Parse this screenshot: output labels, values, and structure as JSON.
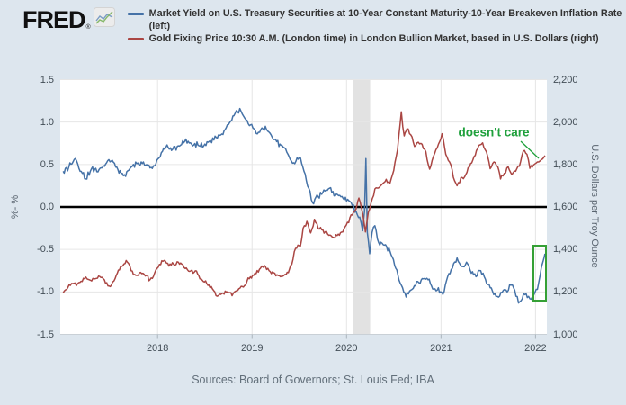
{
  "header": {
    "logo_text": "FRED",
    "logo_reg": "®",
    "legend": [
      {
        "label": "Market Yield on U.S. Treasury Securities at 10-Year Constant Maturity-10-Year Breakeven Inflation Rate (left)",
        "color": "#4572a7"
      },
      {
        "label": "Gold Fixing Price 10:30 A.M. (London time) in London Bullion Market, based in U.S. Dollars (right)",
        "color": "#aa4643"
      }
    ]
  },
  "footer": {
    "sources": "Sources: Board of Governors; St. Louis Fed; IBA"
  },
  "colors": {
    "background": "#dde6ee",
    "plot_background": "#ffffff",
    "gridline": "#e6e6e6",
    "zero_line": "#000000",
    "recession_band": "#e2e2e2",
    "treasury_line": "#4572a7",
    "gold_line": "#aa4643",
    "annotation_green": "#1fa03c"
  },
  "chart_data": {
    "type": "line",
    "x_domain": [
      2016.97,
      2022.12
    ],
    "x_ticks": [
      {
        "v": 2018,
        "label": "2018"
      },
      {
        "v": 2019,
        "label": "2019"
      },
      {
        "v": 2020,
        "label": "2020"
      },
      {
        "v": 2021,
        "label": "2021"
      },
      {
        "v": 2022,
        "label": "2022"
      }
    ],
    "y_left": {
      "label": "%- %",
      "domain": [
        -1.5,
        1.5
      ],
      "ticks": [
        {
          "v": 1.5,
          "label": "1.5"
        },
        {
          "v": 1.0,
          "label": "1.0"
        },
        {
          "v": 0.5,
          "label": "0.5"
        },
        {
          "v": 0.0,
          "label": "0.0"
        },
        {
          "v": -0.5,
          "label": "-0.5"
        },
        {
          "v": -1.0,
          "label": "-1.0"
        },
        {
          "v": -1.5,
          "label": "-1.5"
        }
      ]
    },
    "y_right": {
      "label": "U.S. Dollars per Troy Ounce",
      "domain": [
        1000,
        2200
      ],
      "ticks": [
        {
          "v": 2200,
          "label": "2,200"
        },
        {
          "v": 2000,
          "label": "2,000"
        },
        {
          "v": 1800,
          "label": "1,800"
        },
        {
          "v": 1600,
          "label": "1,600"
        },
        {
          "v": 1400,
          "label": "1,400"
        },
        {
          "v": 1200,
          "label": "1,200"
        },
        {
          "v": 1000,
          "label": "1,000"
        }
      ]
    },
    "zero_line": 0,
    "recession_band": {
      "from": 2020.07,
      "to": 2020.25
    },
    "series": [
      {
        "id": "treasury-real-yield",
        "axis": "left",
        "color": "#4572a7",
        "points": [
          [
            2017.0,
            0.42
          ],
          [
            2017.06,
            0.47
          ],
          [
            2017.13,
            0.57
          ],
          [
            2017.18,
            0.42
          ],
          [
            2017.24,
            0.33
          ],
          [
            2017.3,
            0.45
          ],
          [
            2017.38,
            0.44
          ],
          [
            2017.46,
            0.52
          ],
          [
            2017.52,
            0.55
          ],
          [
            2017.58,
            0.44
          ],
          [
            2017.65,
            0.38
          ],
          [
            2017.72,
            0.47
          ],
          [
            2017.78,
            0.51
          ],
          [
            2017.85,
            0.53
          ],
          [
            2017.92,
            0.46
          ],
          [
            2017.98,
            0.5
          ],
          [
            2018.04,
            0.64
          ],
          [
            2018.1,
            0.73
          ],
          [
            2018.16,
            0.68
          ],
          [
            2018.22,
            0.72
          ],
          [
            2018.3,
            0.8
          ],
          [
            2018.36,
            0.74
          ],
          [
            2018.44,
            0.72
          ],
          [
            2018.5,
            0.74
          ],
          [
            2018.56,
            0.78
          ],
          [
            2018.62,
            0.82
          ],
          [
            2018.68,
            0.86
          ],
          [
            2018.75,
            0.97
          ],
          [
            2018.82,
            1.1
          ],
          [
            2018.87,
            1.16
          ],
          [
            2018.91,
            1.07
          ],
          [
            2018.96,
            0.98
          ],
          [
            2019.02,
            0.92
          ],
          [
            2019.08,
            0.88
          ],
          [
            2019.14,
            0.95
          ],
          [
            2019.2,
            0.85
          ],
          [
            2019.26,
            0.77
          ],
          [
            2019.32,
            0.72
          ],
          [
            2019.38,
            0.62
          ],
          [
            2019.44,
            0.52
          ],
          [
            2019.5,
            0.58
          ],
          [
            2019.55,
            0.42
          ],
          [
            2019.6,
            0.22
          ],
          [
            2019.64,
            0.05
          ],
          [
            2019.7,
            0.12
          ],
          [
            2019.76,
            0.2
          ],
          [
            2019.82,
            0.22
          ],
          [
            2019.88,
            0.13
          ],
          [
            2019.94,
            0.12
          ],
          [
            2020.0,
            0.07
          ],
          [
            2020.06,
            0.02
          ],
          [
            2020.1,
            -0.05
          ],
          [
            2020.14,
            -0.12
          ],
          [
            2020.17,
            -0.28
          ],
          [
            2020.19,
            -0.05
          ],
          [
            2020.205,
            0.57
          ],
          [
            2020.22,
            -0.3
          ],
          [
            2020.245,
            -0.55
          ],
          [
            2020.27,
            -0.3
          ],
          [
            2020.3,
            -0.22
          ],
          [
            2020.34,
            -0.42
          ],
          [
            2020.4,
            -0.45
          ],
          [
            2020.46,
            -0.52
          ],
          [
            2020.52,
            -0.72
          ],
          [
            2020.58,
            -0.92
          ],
          [
            2020.63,
            -1.06
          ],
          [
            2020.68,
            -0.98
          ],
          [
            2020.73,
            -0.93
          ],
          [
            2020.79,
            -0.86
          ],
          [
            2020.85,
            -0.84
          ],
          [
            2020.9,
            -0.93
          ],
          [
            2020.96,
            -0.98
          ],
          [
            2021.02,
            -1.03
          ],
          [
            2021.07,
            -0.82
          ],
          [
            2021.12,
            -0.72
          ],
          [
            2021.17,
            -0.6
          ],
          [
            2021.22,
            -0.7
          ],
          [
            2021.27,
            -0.65
          ],
          [
            2021.32,
            -0.78
          ],
          [
            2021.37,
            -0.82
          ],
          [
            2021.42,
            -0.75
          ],
          [
            2021.47,
            -0.85
          ],
          [
            2021.52,
            -0.95
          ],
          [
            2021.57,
            -1.02
          ],
          [
            2021.62,
            -1.05
          ],
          [
            2021.66,
            -0.98
          ],
          [
            2021.7,
            -1.0
          ],
          [
            2021.74,
            -0.92
          ],
          [
            2021.78,
            -0.98
          ],
          [
            2021.82,
            -1.13
          ],
          [
            2021.86,
            -1.08
          ],
          [
            2021.9,
            -1.02
          ],
          [
            2021.94,
            -1.08
          ],
          [
            2021.98,
            -1.04
          ],
          [
            2022.02,
            -0.97
          ],
          [
            2022.05,
            -0.8
          ],
          [
            2022.07,
            -0.68
          ],
          [
            2022.09,
            -0.6
          ],
          [
            2022.1,
            -0.55
          ]
        ]
      },
      {
        "id": "gold-fixing-price",
        "axis": "right",
        "color": "#aa4643",
        "points": [
          [
            2017.0,
            1195
          ],
          [
            2017.05,
            1220
          ],
          [
            2017.09,
            1240
          ],
          [
            2017.14,
            1230
          ],
          [
            2017.19,
            1250
          ],
          [
            2017.24,
            1270
          ],
          [
            2017.29,
            1255
          ],
          [
            2017.34,
            1262
          ],
          [
            2017.4,
            1268
          ],
          [
            2017.45,
            1240
          ],
          [
            2017.5,
            1225
          ],
          [
            2017.55,
            1262
          ],
          [
            2017.62,
            1320
          ],
          [
            2017.68,
            1340
          ],
          [
            2017.72,
            1300
          ],
          [
            2017.77,
            1278
          ],
          [
            2017.82,
            1292
          ],
          [
            2017.87,
            1275
          ],
          [
            2017.92,
            1258
          ],
          [
            2017.97,
            1290
          ],
          [
            2018.02,
            1330
          ],
          [
            2018.07,
            1348
          ],
          [
            2018.12,
            1322
          ],
          [
            2018.17,
            1330
          ],
          [
            2018.22,
            1340
          ],
          [
            2018.28,
            1315
          ],
          [
            2018.34,
            1297
          ],
          [
            2018.4,
            1300
          ],
          [
            2018.46,
            1262
          ],
          [
            2018.52,
            1240
          ],
          [
            2018.58,
            1215
          ],
          [
            2018.63,
            1180
          ],
          [
            2018.68,
            1192
          ],
          [
            2018.74,
            1200
          ],
          [
            2018.8,
            1192
          ],
          [
            2018.86,
            1215
          ],
          [
            2018.92,
            1230
          ],
          [
            2018.97,
            1262
          ],
          [
            2019.03,
            1288
          ],
          [
            2019.09,
            1312
          ],
          [
            2019.13,
            1325
          ],
          [
            2019.18,
            1300
          ],
          [
            2019.24,
            1288
          ],
          [
            2019.3,
            1272
          ],
          [
            2019.36,
            1282
          ],
          [
            2019.42,
            1330
          ],
          [
            2019.46,
            1405
          ],
          [
            2019.51,
            1412
          ],
          [
            2019.54,
            1500
          ],
          [
            2019.58,
            1532
          ],
          [
            2019.62,
            1478
          ],
          [
            2019.66,
            1542
          ],
          [
            2019.7,
            1498
          ],
          [
            2019.75,
            1492
          ],
          [
            2019.8,
            1472
          ],
          [
            2019.85,
            1458
          ],
          [
            2019.9,
            1465
          ],
          [
            2019.96,
            1482
          ],
          [
            2020.01,
            1528
          ],
          [
            2020.06,
            1562
          ],
          [
            2020.1,
            1590
          ],
          [
            2020.13,
            1642
          ],
          [
            2020.16,
            1590
          ],
          [
            2020.2,
            1482
          ],
          [
            2020.23,
            1575
          ],
          [
            2020.26,
            1620
          ],
          [
            2020.3,
            1685
          ],
          [
            2020.36,
            1700
          ],
          [
            2020.42,
            1730
          ],
          [
            2020.46,
            1712
          ],
          [
            2020.5,
            1772
          ],
          [
            2020.54,
            1870
          ],
          [
            2020.58,
            2048
          ],
          [
            2020.61,
            1935
          ],
          [
            2020.64,
            1968
          ],
          [
            2020.68,
            1940
          ],
          [
            2020.72,
            1885
          ],
          [
            2020.76,
            1905
          ],
          [
            2020.8,
            1895
          ],
          [
            2020.84,
            1860
          ],
          [
            2020.88,
            1778
          ],
          [
            2020.92,
            1838
          ],
          [
            2020.96,
            1878
          ],
          [
            2021.01,
            1945
          ],
          [
            2021.05,
            1848
          ],
          [
            2021.09,
            1812
          ],
          [
            2021.13,
            1740
          ],
          [
            2021.17,
            1700
          ],
          [
            2021.21,
            1738
          ],
          [
            2021.25,
            1742
          ],
          [
            2021.3,
            1788
          ],
          [
            2021.35,
            1838
          ],
          [
            2021.4,
            1890
          ],
          [
            2021.44,
            1902
          ],
          [
            2021.48,
            1860
          ],
          [
            2021.52,
            1780
          ],
          [
            2021.56,
            1812
          ],
          [
            2021.6,
            1790
          ],
          [
            2021.63,
            1732
          ],
          [
            2021.67,
            1758
          ],
          [
            2021.71,
            1790
          ],
          [
            2021.75,
            1752
          ],
          [
            2021.79,
            1768
          ],
          [
            2021.83,
            1792
          ],
          [
            2021.87,
            1862
          ],
          [
            2021.91,
            1848
          ],
          [
            2021.94,
            1782
          ],
          [
            2021.98,
            1798
          ],
          [
            2022.02,
            1812
          ],
          [
            2022.06,
            1822
          ],
          [
            2022.1,
            1842
          ]
        ]
      }
    ],
    "annotation": {
      "text": "doesn't care",
      "color": "#1fa03c",
      "x": 549,
      "y": 147,
      "pointer": [
        [
          579,
          157
        ],
        [
          599,
          176
        ]
      ],
      "box": {
        "x": 593,
        "y": 273,
        "w": 14,
        "h": 61,
        "color": "#35a035"
      }
    }
  }
}
